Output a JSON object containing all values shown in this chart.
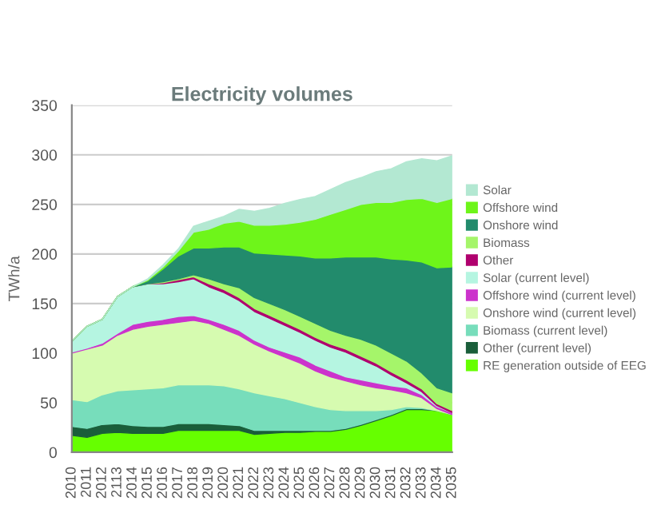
{
  "chart_data": {
    "type": "area",
    "title": "Electricity volumes",
    "ylabel": "TWh/a",
    "stacked": true,
    "categories": [
      "2010",
      "2011",
      "2012",
      "2113",
      "2014",
      "2015",
      "2016",
      "2017",
      "2018",
      "2019",
      "2020",
      "2021",
      "2022",
      "2023",
      "2024",
      "2025",
      "2026",
      "2027",
      "2028",
      "2029",
      "2030",
      "2031",
      "2032",
      "2033",
      "2034",
      "2035"
    ],
    "ylim": [
      0,
      350
    ],
    "yticks": [
      0,
      50,
      100,
      150,
      200,
      250,
      300,
      350
    ],
    "grid": "y",
    "legend": "right",
    "series": [
      {
        "name": "RE generation outside of EEG",
        "color": "#66ff00",
        "values": [
          17,
          15,
          19,
          20,
          19,
          19,
          19,
          22,
          22,
          22,
          22,
          22,
          18,
          19,
          20,
          20,
          21,
          21,
          23,
          27,
          32,
          37,
          43,
          43,
          42,
          38
        ]
      },
      {
        "name": "Other (current level)",
        "color": "#1a5e3a",
        "values": [
          9,
          9,
          9,
          9,
          8,
          7,
          7,
          7,
          7,
          7,
          6,
          5,
          4,
          3,
          2,
          2,
          1,
          1,
          1,
          1,
          1,
          1,
          1,
          1,
          0,
          0
        ]
      },
      {
        "name": "Biomass (current level)",
        "color": "#77ddbb",
        "values": [
          27,
          27,
          30,
          33,
          36,
          38,
          39,
          39,
          39,
          39,
          39,
          37,
          38,
          35,
          32,
          28,
          24,
          21,
          18,
          14,
          9,
          5,
          2,
          1,
          0,
          0
        ]
      },
      {
        "name": "Onshore wind (current level)",
        "color": "#d6fbb0",
        "values": [
          47,
          53,
          50,
          56,
          61,
          63,
          64,
          63,
          65,
          62,
          57,
          54,
          49,
          45,
          42,
          40,
          36,
          33,
          30,
          26,
          23,
          20,
          14,
          10,
          2,
          0
        ]
      },
      {
        "name": "Offshore wind (current level)",
        "color": "#cc33cc",
        "values": [
          1,
          1,
          2,
          2,
          5,
          5,
          5,
          6,
          5,
          4,
          5,
          5,
          4,
          4,
          5,
          6,
          6,
          6,
          4,
          5,
          5,
          4,
          5,
          3,
          2,
          2
        ]
      },
      {
        "name": "Solar (current level)",
        "color": "#b5f5e1",
        "values": [
          11,
          22,
          24,
          37,
          38,
          38,
          36,
          35,
          37,
          33,
          32,
          30,
          29,
          29,
          27,
          25,
          25,
          24,
          25,
          21,
          17,
          11,
          5,
          3,
          1,
          0
        ]
      },
      {
        "name": "Other",
        "color": "#b0006e",
        "values": [
          0,
          0,
          0,
          0,
          0,
          0,
          1,
          2,
          2,
          3,
          3,
          3,
          3,
          3,
          3,
          3,
          3,
          3,
          3,
          3,
          3,
          3,
          3,
          3,
          2,
          2
        ]
      },
      {
        "name": "Biomass",
        "color": "#a5f56a",
        "values": [
          0,
          0,
          0,
          0,
          0,
          0,
          1,
          1,
          2,
          5,
          6,
          10,
          11,
          12,
          13,
          13,
          14,
          14,
          14,
          17,
          18,
          19,
          19,
          16,
          16,
          18
        ]
      },
      {
        "name": "Onshore wind",
        "color": "#228b6c",
        "values": [
          0,
          0,
          0,
          0,
          0,
          3,
          13,
          23,
          27,
          31,
          37,
          41,
          45,
          50,
          55,
          61,
          66,
          73,
          79,
          83,
          89,
          95,
          102,
          112,
          121,
          127
        ]
      },
      {
        "name": "Offshore wind",
        "color": "#6ef51a",
        "values": [
          0,
          0,
          0,
          0,
          0,
          1,
          2,
          5,
          16,
          19,
          24,
          26,
          28,
          29,
          31,
          34,
          39,
          44,
          48,
          53,
          55,
          57,
          61,
          64,
          66,
          69
        ]
      },
      {
        "name": "Solar",
        "color": "#b3e8d2",
        "values": [
          0,
          0,
          0,
          0,
          0,
          1,
          2,
          2,
          6,
          8,
          7,
          12,
          14,
          17,
          21,
          23,
          23,
          25,
          27,
          27,
          31,
          34,
          38,
          40,
          42,
          43
        ]
      }
    ]
  }
}
